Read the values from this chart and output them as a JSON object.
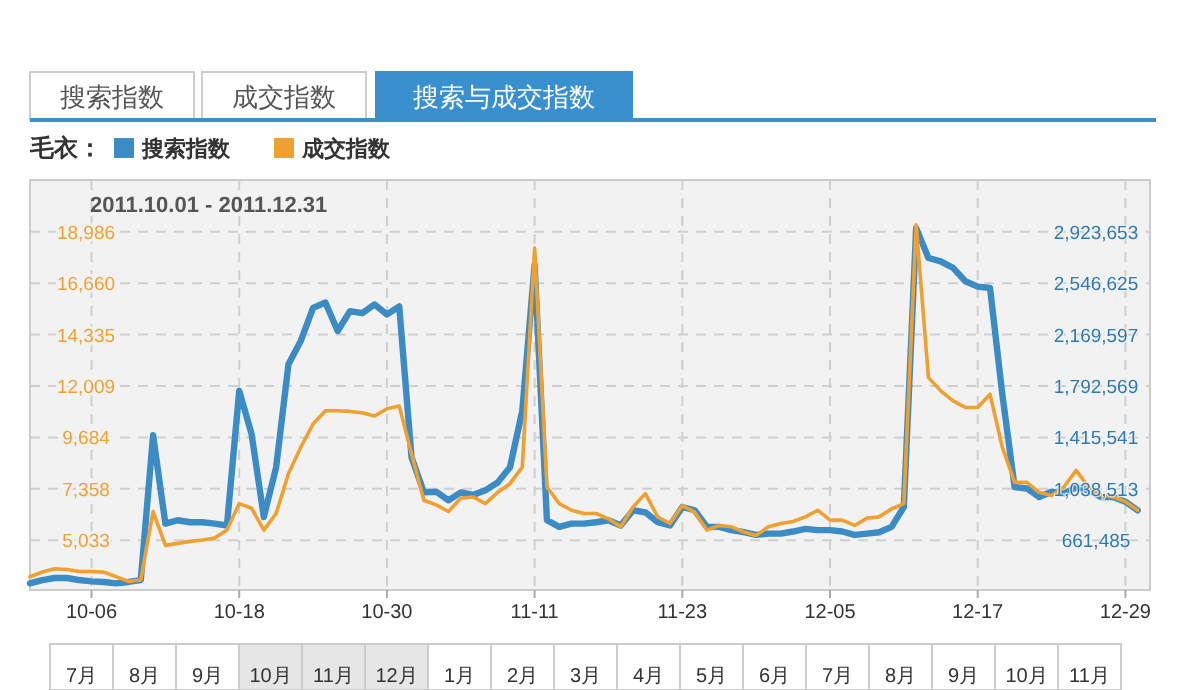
{
  "chart_data": {
    "type": "line",
    "legend_title": "毛衣：",
    "annotations": [
      "搜索指数",
      "成交指数",
      "搜索与成交指数",
      "2011.10.01 - 2011.12.31",
      "7月",
      "8月",
      "9月",
      "10月",
      "11月",
      "12月",
      "1月",
      "2月",
      "3月",
      "4月",
      "5月",
      "6月",
      "7月",
      "8月",
      "9月",
      "10月",
      "11月"
    ],
    "x": [
      "2011-10-01",
      "2011-10-02",
      "2011-10-03",
      "2011-10-04",
      "2011-10-05",
      "2011-10-06",
      "2011-10-07",
      "2011-10-08",
      "2011-10-09",
      "2011-10-10",
      "2011-10-11",
      "2011-10-12",
      "2011-10-13",
      "2011-10-14",
      "2011-10-15",
      "2011-10-16",
      "2011-10-17",
      "2011-10-18",
      "2011-10-19",
      "2011-10-20",
      "2011-10-21",
      "2011-10-22",
      "2011-10-23",
      "2011-10-24",
      "2011-10-25",
      "2011-10-26",
      "2011-10-27",
      "2011-10-28",
      "2011-10-29",
      "2011-10-30",
      "2011-10-31",
      "2011-11-01",
      "2011-11-02",
      "2011-11-03",
      "2011-11-04",
      "2011-11-05",
      "2011-11-06",
      "2011-11-07",
      "2011-11-08",
      "2011-11-09",
      "2011-11-10",
      "2011-11-11",
      "2011-11-12",
      "2011-11-13",
      "2011-11-14",
      "2011-11-15",
      "2011-11-16",
      "2011-11-17",
      "2011-11-18",
      "2011-11-19",
      "2011-11-20",
      "2011-11-21",
      "2011-11-22",
      "2011-11-23",
      "2011-11-24",
      "2011-11-25",
      "2011-11-26",
      "2011-11-27",
      "2011-11-28",
      "2011-11-29",
      "2011-11-30",
      "2011-12-01",
      "2011-12-02",
      "2011-12-03",
      "2011-12-04",
      "2011-12-05",
      "2011-12-06",
      "2011-12-07",
      "2011-12-08",
      "2011-12-09",
      "2011-12-10",
      "2011-12-11",
      "2011-12-12",
      "2011-12-13",
      "2011-12-14",
      "2011-12-15",
      "2011-12-16",
      "2011-12-17",
      "2011-12-18",
      "2011-12-19",
      "2011-12-20",
      "2011-12-21",
      "2011-12-22",
      "2011-12-23",
      "2011-12-24",
      "2011-12-25",
      "2011-12-26",
      "2011-12-27",
      "2011-12-28",
      "2011-12-29",
      "2011-12-30"
    ],
    "series": [
      {
        "name": "搜索指数",
        "color": "#3b8cc4",
        "axis": "y2",
        "values": [
          345000,
          369000,
          384000,
          384000,
          369000,
          359000,
          355000,
          345000,
          355000,
          369000,
          1431000,
          783000,
          808000,
          793000,
          793000,
          783000,
          769000,
          1757000,
          1441000,
          832000,
          1197000,
          1952000,
          2123000,
          2366000,
          2405000,
          2196000,
          2342000,
          2327000,
          2391000,
          2318000,
          2376000,
          1270000,
          1012000,
          1017000,
          954000,
          1012000,
          993000,
          1027000,
          1085000,
          1197000,
          1611000,
          2683000,
          808000,
          759000,
          783000,
          783000,
          793000,
          808000,
          769000,
          881000,
          866000,
          793000,
          769000,
          905000,
          881000,
          759000,
          759000,
          735000,
          720000,
          700000,
          710000,
          710000,
          725000,
          744000,
          735000,
          735000,
          725000,
          700000,
          710000,
          720000,
          759000,
          905000,
          2951000,
          2732000,
          2707000,
          2659000,
          2561000,
          2522000,
          2512000,
          1733000,
          1051000,
          1041000,
          978000,
          1017000,
          1002000,
          1051000,
          1027000,
          978000,
          978000,
          944000,
          881000
        ]
      },
      {
        "name": "成交指数",
        "color": "#f0a030",
        "values": [
          3380,
          3590,
          3740,
          3710,
          3620,
          3620,
          3590,
          3380,
          3170,
          3230,
          6330,
          4800,
          4890,
          4980,
          5040,
          5130,
          5490,
          6690,
          6480,
          5490,
          6240,
          8040,
          9240,
          10290,
          10890,
          10890,
          10860,
          10800,
          10650,
          10980,
          11100,
          8940,
          6840,
          6630,
          6330,
          6930,
          6990,
          6690,
          7200,
          7590,
          8340,
          18250,
          7440,
          6690,
          6390,
          6240,
          6240,
          6000,
          5640,
          6540,
          7140,
          6090,
          5790,
          6600,
          6300,
          5490,
          5700,
          5640,
          5400,
          5250,
          5640,
          5790,
          5880,
          6090,
          6390,
          5940,
          5940,
          5700,
          6030,
          6090,
          6450,
          6690,
          19300,
          12390,
          11790,
          11340,
          11040,
          11040,
          11640,
          9240,
          7650,
          7650,
          7200,
          7050,
          7440,
          8190,
          7440,
          7080,
          6990,
          6780,
          6390
        ]
      }
    ],
    "xlim": [
      "2011-10-01",
      "2011-12-31"
    ],
    "xticks": [
      {
        "value": "2011-10-06",
        "label": "10-06"
      },
      {
        "value": "2011-10-18",
        "label": "10-18"
      },
      {
        "value": "2011-10-30",
        "label": "10-30"
      },
      {
        "value": "2011-11-11",
        "label": "11-11"
      },
      {
        "value": "2011-11-23",
        "label": "11-23"
      },
      {
        "value": "2011-12-05",
        "label": "12-05"
      },
      {
        "value": "2011-12-17",
        "label": "12-17"
      },
      {
        "value": "2011-12-29",
        "label": "12-29"
      }
    ],
    "ylim": [
      2780,
      21330
    ],
    "yticks": [
      {
        "value": 5033,
        "label": "5,033"
      },
      {
        "value": 7358,
        "label": "7,358"
      },
      {
        "value": 9684,
        "label": "9,684"
      },
      {
        "value": 12009,
        "label": "12,009"
      },
      {
        "value": 14335,
        "label": "14,335"
      },
      {
        "value": 16660,
        "label": "16,660"
      },
      {
        "value": 18986,
        "label": "18,986"
      }
    ],
    "y2lim": [
      296000,
      3304000
    ],
    "y2ticks": [
      {
        "value": 661485,
        "label": "661,485"
      },
      {
        "value": 1038513,
        "label": "1,038,513"
      },
      {
        "value": 1415541,
        "label": "1,415,541"
      },
      {
        "value": 1792569,
        "label": "1,792,569"
      },
      {
        "value": 2169597,
        "label": "2,169,597"
      },
      {
        "value": 2546625,
        "label": "2,546,625"
      },
      {
        "value": 2923653,
        "label": "2,923,653"
      }
    ],
    "grid": true,
    "legend": "top left",
    "line_style": "solid"
  }
}
